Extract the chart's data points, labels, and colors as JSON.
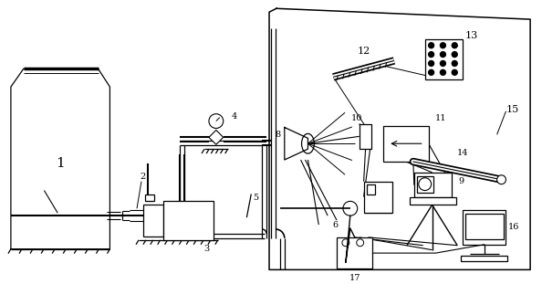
{
  "bg_color": "#ffffff",
  "line_color": "#000000",
  "figsize": [
    5.94,
    3.11
  ],
  "dpi": 100
}
